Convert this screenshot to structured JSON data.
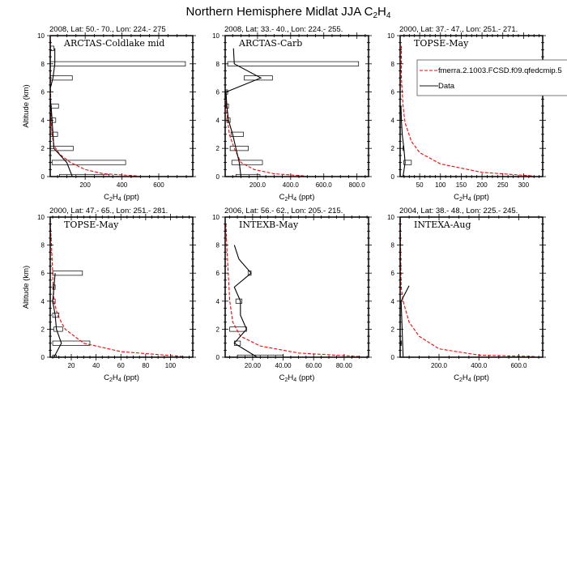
{
  "title": {
    "main": "Northern Hemisphere Midlat JJA C",
    "sub1": "2",
    "mid": "H",
    "sub2": "4"
  },
  "y_label": "Altitude (km)",
  "x_label": {
    "pre": "C",
    "s1": "2",
    "mid": "H",
    "s2": "4",
    "post": " (ppt)"
  },
  "legend": {
    "model": "fmerra.2.1003.FCSD.f09.qfedcmip.5",
    "data": "Data"
  },
  "colors": {
    "model": "#ff0000",
    "data": "#000000",
    "box": "#000000"
  },
  "chart_data": [
    {
      "type": "line",
      "header": "2008, Lat:  50.- 70., Lon: 224.- 275",
      "campaign": "ARCTAS-Coldlake mid",
      "xlim": [
        10,
        785
      ],
      "ylim": [
        0,
        10
      ],
      "xticks": [
        200,
        400,
        600
      ],
      "xtick_labels": [
        "200",
        "400",
        "600"
      ],
      "yticks": [
        0,
        2,
        4,
        6,
        8,
        10
      ],
      "ytick_labels": [
        "0",
        "2",
        "4",
        "6",
        "8",
        "10"
      ],
      "model": [
        [
          480,
          0.05
        ],
        [
          300,
          0.2
        ],
        [
          200,
          0.5
        ],
        [
          120,
          1
        ],
        [
          60,
          1.6
        ],
        [
          30,
          2.2
        ],
        [
          20,
          3
        ],
        [
          15,
          4
        ],
        [
          12,
          6
        ],
        [
          10,
          8
        ],
        [
          12,
          9.7
        ]
      ],
      "data": [
        [
          130,
          0
        ],
        [
          100,
          1
        ],
        [
          30,
          2
        ],
        [
          25,
          3
        ],
        [
          20,
          4
        ],
        [
          15,
          5
        ],
        [
          5,
          6
        ],
        [
          25,
          7
        ],
        [
          35,
          8
        ],
        [
          35,
          9.1
        ]
      ],
      "boxes": [
        [
          0,
          60,
          330
        ],
        [
          1,
          20,
          420
        ],
        [
          2,
          10,
          135
        ],
        [
          3,
          5,
          50
        ],
        [
          4,
          5,
          40
        ],
        [
          5,
          5,
          55
        ],
        [
          7,
          5,
          130
        ],
        [
          8,
          5,
          745
        ],
        [
          9.1,
          10,
          30
        ]
      ]
    },
    {
      "type": "line",
      "header": "2008, Lat:  33.- 40., Lon: 224.- 255.",
      "campaign": "ARCTAS-Carb",
      "xlim": [
        5,
        870
      ],
      "ylim": [
        0,
        10
      ],
      "xticks": [
        200,
        400,
        600,
        800
      ],
      "xtick_labels": [
        "200.0",
        "400.0",
        "600.0",
        "800.0"
      ],
      "yticks": [
        0,
        2,
        4,
        6,
        8,
        10
      ],
      "ytick_labels": [
        "0",
        "2",
        "4",
        "6",
        "8",
        "10"
      ],
      "model": [
        [
          480,
          0.05
        ],
        [
          300,
          0.2
        ],
        [
          180,
          0.5
        ],
        [
          100,
          1
        ],
        [
          60,
          2
        ],
        [
          30,
          3
        ],
        [
          15,
          4.5
        ],
        [
          8,
          6
        ]
      ],
      "data": [
        [
          100,
          0
        ],
        [
          90,
          1
        ],
        [
          70,
          2
        ],
        [
          50,
          3
        ],
        [
          25,
          4
        ],
        [
          15,
          5
        ],
        [
          10,
          6
        ],
        [
          220,
          7
        ],
        [
          60,
          8
        ],
        [
          55,
          9.1
        ]
      ],
      "boxes": [
        [
          0,
          70,
          215
        ],
        [
          1,
          45,
          230
        ],
        [
          2,
          35,
          145
        ],
        [
          3,
          40,
          115
        ],
        [
          4,
          15,
          35
        ],
        [
          5,
          10,
          25
        ],
        [
          6,
          10,
          20
        ],
        [
          7,
          120,
          290
        ],
        [
          8,
          20,
          810
        ]
      ]
    },
    {
      "type": "line",
      "header": "2000, Lat: 37.- 47., Lon: 251.- 271.",
      "campaign": "TOPSE-May",
      "xlim": [
        3,
        346
      ],
      "ylim": [
        0,
        10
      ],
      "xticks": [
        50,
        100,
        150,
        200,
        250,
        300
      ],
      "xtick_labels": [
        "50",
        "100",
        "150",
        "200",
        "250",
        "300"
      ],
      "yticks": [
        0,
        2,
        4,
        6,
        8,
        10
      ],
      "ytick_labels": [
        "0",
        "2",
        "4",
        "6",
        "8",
        "10"
      ],
      "model": [
        [
          320,
          0.05
        ],
        [
          200,
          0.3
        ],
        [
          100,
          0.9
        ],
        [
          50,
          1.7
        ],
        [
          30,
          2.5
        ],
        [
          15,
          3.8
        ],
        [
          10,
          5
        ],
        [
          6,
          7
        ],
        [
          6,
          9.4
        ]
      ],
      "data": [
        [
          10,
          0
        ],
        [
          15,
          1
        ],
        [
          12,
          2
        ],
        [
          8,
          3
        ],
        [
          6,
          4
        ],
        [
          5,
          5
        ]
      ],
      "boxes": [
        [
          1,
          12,
          30
        ],
        [
          2,
          10,
          12
        ]
      ]
    },
    {
      "type": "line",
      "header": "2000, Lat: 47.- 65., Lon: 251.- 281.",
      "campaign": "TOPSE-May",
      "xlim": [
        3,
        118
      ],
      "ylim": [
        0,
        10
      ],
      "xticks": [
        20,
        40,
        60,
        80,
        100
      ],
      "xtick_labels": [
        "20",
        "40",
        "60",
        "80",
        "100"
      ],
      "yticks": [
        0,
        2,
        4,
        6,
        8,
        10
      ],
      "ytick_labels": [
        "0",
        "2",
        "4",
        "6",
        "8",
        "10"
      ],
      "model": [
        [
          110,
          0.05
        ],
        [
          60,
          0.4
        ],
        [
          30,
          1
        ],
        [
          15,
          2
        ],
        [
          9,
          3
        ],
        [
          6,
          4
        ],
        [
          5,
          6
        ],
        [
          4,
          8
        ],
        [
          3,
          9.7
        ]
      ],
      "data": [
        [
          6,
          0
        ],
        [
          12,
          1
        ],
        [
          8,
          2
        ],
        [
          7,
          3
        ],
        [
          5,
          4
        ],
        [
          6,
          5
        ],
        [
          7,
          6
        ]
      ],
      "boxes": [
        [
          0,
          5,
          8
        ],
        [
          1,
          5,
          35
        ],
        [
          2,
          6,
          13
        ],
        [
          3,
          5,
          10
        ],
        [
          4,
          5,
          7
        ],
        [
          5,
          5,
          7
        ],
        [
          6,
          5,
          29
        ]
      ]
    },
    {
      "type": "line",
      "header": "2006, Lat: 56.- 62., Lon: 205.- 215.",
      "campaign": "INTEXB-May",
      "xlim": [
        2,
        96
      ],
      "ylim": [
        0,
        10
      ],
      "xticks": [
        20,
        40,
        60,
        80
      ],
      "xtick_labels": [
        "20.00",
        "40.00",
        "60.00",
        "80.00"
      ],
      "yticks": [
        0,
        2,
        4,
        6,
        8,
        10
      ],
      "ytick_labels": [
        "0",
        "2",
        "4",
        "6",
        "8",
        "10"
      ],
      "model": [
        [
          90,
          0.05
        ],
        [
          50,
          0.3
        ],
        [
          25,
          0.8
        ],
        [
          12,
          1.5
        ],
        [
          7,
          2.5
        ],
        [
          5,
          4
        ],
        [
          4,
          6
        ],
        [
          3,
          8
        ],
        [
          2.5,
          9.5
        ]
      ],
      "data": [
        [
          23,
          0
        ],
        [
          8,
          1
        ],
        [
          16,
          2
        ],
        [
          12,
          3
        ],
        [
          12,
          4
        ],
        [
          8,
          5
        ],
        [
          19,
          6
        ],
        [
          11,
          7
        ],
        [
          8,
          8
        ]
      ],
      "boxes": [
        [
          0,
          10,
          40
        ],
        [
          1,
          8,
          12
        ],
        [
          2,
          5,
          16
        ],
        [
          4,
          9,
          13
        ],
        [
          6,
          17,
          19
        ]
      ]
    },
    {
      "type": "line",
      "header": "2004, Lat: 38.- 48., Lon: 225.- 245.",
      "campaign": "INTEXA-Aug",
      "xlim": [
        5,
        720
      ],
      "ylim": [
        0,
        10
      ],
      "xticks": [
        200,
        400,
        600
      ],
      "xtick_labels": [
        "200.0",
        "400.0",
        "600.0"
      ],
      "yticks": [
        0,
        2,
        4,
        6,
        8,
        10
      ],
      "ytick_labels": [
        "0",
        "2",
        "4",
        "6",
        "8",
        "10"
      ],
      "model": [
        [
          680,
          0.05
        ],
        [
          400,
          0.15
        ],
        [
          200,
          0.6
        ],
        [
          100,
          1.5
        ],
        [
          50,
          2.5
        ],
        [
          20,
          4
        ],
        [
          10,
          5
        ],
        [
          8,
          7
        ],
        [
          6,
          10
        ]
      ],
      "data": [
        [
          10,
          0
        ],
        [
          20,
          0
        ],
        [
          15,
          2
        ],
        [
          10,
          4
        ],
        [
          50,
          5.1
        ]
      ],
      "boxes": [
        [
          1,
          8,
          12
        ]
      ]
    }
  ]
}
